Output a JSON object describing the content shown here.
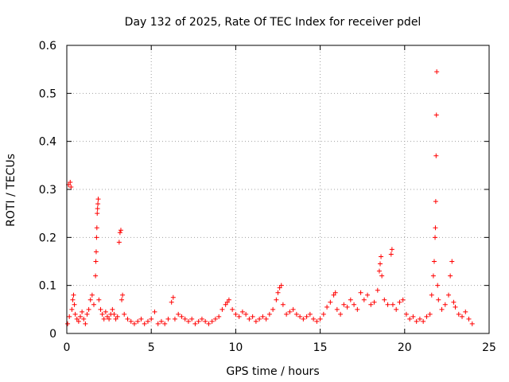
{
  "chart_data": {
    "type": "scatter",
    "title": "Day 132 of 2025, Rate Of TEC Index for receiver pdel",
    "xlabel": "GPS time / hours",
    "ylabel": "ROTI / TECUs",
    "xlim": [
      0,
      25
    ],
    "ylim": [
      0,
      0.6
    ],
    "x_ticks": [
      0,
      5,
      10,
      15,
      20,
      25
    ],
    "y_ticks": [
      0,
      0.1,
      0.2,
      0.3,
      0.4,
      0.5,
      0.6
    ],
    "x_tick_labels": [
      "0",
      "5",
      "10",
      "15",
      "20",
      "25"
    ],
    "y_tick_labels": [
      "0",
      "0.1",
      "0.2",
      "0.3",
      "0.4",
      "0.5",
      "0.6"
    ],
    "grid": true,
    "marker": "plus",
    "color": "#ff0000",
    "series": [
      {
        "points": [
          [
            0.1,
            0.31
          ],
          [
            0.2,
            0.315
          ],
          [
            0.25,
            0.305
          ],
          [
            0.05,
            0.02
          ],
          [
            0.15,
            0.035
          ],
          [
            0.3,
            0.05
          ],
          [
            0.35,
            0.07
          ],
          [
            0.4,
            0.08
          ],
          [
            0.45,
            0.06
          ],
          [
            0.5,
            0.04
          ],
          [
            0.6,
            0.03
          ],
          [
            0.7,
            0.025
          ],
          [
            0.8,
            0.035
          ],
          [
            0.9,
            0.045
          ],
          [
            1.0,
            0.03
          ],
          [
            1.1,
            0.02
          ],
          [
            1.2,
            0.04
          ],
          [
            1.3,
            0.05
          ],
          [
            1.4,
            0.07
          ],
          [
            1.5,
            0.08
          ],
          [
            1.6,
            0.06
          ],
          [
            1.7,
            0.12
          ],
          [
            1.72,
            0.15
          ],
          [
            1.74,
            0.17
          ],
          [
            1.76,
            0.2
          ],
          [
            1.78,
            0.22
          ],
          [
            1.8,
            0.25
          ],
          [
            1.82,
            0.26
          ],
          [
            1.84,
            0.27
          ],
          [
            1.86,
            0.28
          ],
          [
            1.9,
            0.07
          ],
          [
            2.0,
            0.05
          ],
          [
            2.1,
            0.04
          ],
          [
            2.2,
            0.03
          ],
          [
            2.3,
            0.045
          ],
          [
            2.4,
            0.035
          ],
          [
            2.5,
            0.03
          ],
          [
            2.6,
            0.04
          ],
          [
            2.7,
            0.05
          ],
          [
            2.8,
            0.04
          ],
          [
            2.9,
            0.03
          ],
          [
            3.0,
            0.035
          ],
          [
            3.1,
            0.19
          ],
          [
            3.15,
            0.21
          ],
          [
            3.2,
            0.215
          ],
          [
            3.25,
            0.07
          ],
          [
            3.3,
            0.08
          ],
          [
            3.4,
            0.04
          ],
          [
            3.6,
            0.03
          ],
          [
            3.8,
            0.025
          ],
          [
            4.0,
            0.02
          ],
          [
            4.2,
            0.025
          ],
          [
            4.4,
            0.03
          ],
          [
            4.6,
            0.02
          ],
          [
            4.8,
            0.025
          ],
          [
            5.0,
            0.03
          ],
          [
            5.2,
            0.045
          ],
          [
            5.4,
            0.02
          ],
          [
            5.6,
            0.025
          ],
          [
            5.8,
            0.02
          ],
          [
            6.0,
            0.03
          ],
          [
            6.2,
            0.065
          ],
          [
            6.3,
            0.075
          ],
          [
            6.4,
            0.03
          ],
          [
            6.6,
            0.04
          ],
          [
            6.8,
            0.035
          ],
          [
            7.0,
            0.03
          ],
          [
            7.2,
            0.025
          ],
          [
            7.4,
            0.03
          ],
          [
            7.6,
            0.02
          ],
          [
            7.8,
            0.025
          ],
          [
            8.0,
            0.03
          ],
          [
            8.2,
            0.025
          ],
          [
            8.4,
            0.02
          ],
          [
            8.6,
            0.025
          ],
          [
            8.8,
            0.03
          ],
          [
            9.0,
            0.035
          ],
          [
            9.2,
            0.05
          ],
          [
            9.4,
            0.06
          ],
          [
            9.5,
            0.065
          ],
          [
            9.6,
            0.07
          ],
          [
            9.8,
            0.05
          ],
          [
            10.0,
            0.04
          ],
          [
            10.2,
            0.035
          ],
          [
            10.4,
            0.045
          ],
          [
            10.6,
            0.04
          ],
          [
            10.8,
            0.03
          ],
          [
            11.0,
            0.035
          ],
          [
            11.2,
            0.025
          ],
          [
            11.4,
            0.03
          ],
          [
            11.6,
            0.035
          ],
          [
            11.8,
            0.03
          ],
          [
            12.0,
            0.04
          ],
          [
            12.2,
            0.05
          ],
          [
            12.4,
            0.07
          ],
          [
            12.5,
            0.085
          ],
          [
            12.6,
            0.095
          ],
          [
            12.7,
            0.1
          ],
          [
            12.8,
            0.06
          ],
          [
            13.0,
            0.04
          ],
          [
            13.2,
            0.045
          ],
          [
            13.4,
            0.05
          ],
          [
            13.6,
            0.04
          ],
          [
            13.8,
            0.035
          ],
          [
            14.0,
            0.03
          ],
          [
            14.2,
            0.035
          ],
          [
            14.4,
            0.04
          ],
          [
            14.6,
            0.03
          ],
          [
            14.8,
            0.025
          ],
          [
            15.0,
            0.03
          ],
          [
            15.2,
            0.04
          ],
          [
            15.4,
            0.055
          ],
          [
            15.6,
            0.065
          ],
          [
            15.8,
            0.08
          ],
          [
            15.9,
            0.085
          ],
          [
            16.0,
            0.05
          ],
          [
            16.2,
            0.04
          ],
          [
            16.4,
            0.06
          ],
          [
            16.6,
            0.055
          ],
          [
            16.8,
            0.07
          ],
          [
            17.0,
            0.06
          ],
          [
            17.2,
            0.05
          ],
          [
            17.4,
            0.085
          ],
          [
            17.6,
            0.07
          ],
          [
            17.8,
            0.08
          ],
          [
            18.0,
            0.06
          ],
          [
            18.2,
            0.065
          ],
          [
            18.4,
            0.09
          ],
          [
            18.5,
            0.13
          ],
          [
            18.55,
            0.145
          ],
          [
            18.6,
            0.16
          ],
          [
            18.65,
            0.12
          ],
          [
            18.8,
            0.07
          ],
          [
            19.0,
            0.06
          ],
          [
            19.2,
            0.165
          ],
          [
            19.25,
            0.175
          ],
          [
            19.3,
            0.06
          ],
          [
            19.5,
            0.05
          ],
          [
            19.7,
            0.065
          ],
          [
            19.9,
            0.07
          ],
          [
            20.1,
            0.04
          ],
          [
            20.3,
            0.03
          ],
          [
            20.5,
            0.035
          ],
          [
            20.7,
            0.025
          ],
          [
            20.9,
            0.03
          ],
          [
            21.1,
            0.025
          ],
          [
            21.3,
            0.035
          ],
          [
            21.5,
            0.04
          ],
          [
            21.6,
            0.08
          ],
          [
            21.7,
            0.12
          ],
          [
            21.75,
            0.15
          ],
          [
            21.8,
            0.2
          ],
          [
            21.82,
            0.22
          ],
          [
            21.84,
            0.275
          ],
          [
            21.86,
            0.37
          ],
          [
            21.88,
            0.455
          ],
          [
            21.9,
            0.545
          ],
          [
            21.95,
            0.1
          ],
          [
            22.0,
            0.07
          ],
          [
            22.2,
            0.05
          ],
          [
            22.4,
            0.06
          ],
          [
            22.6,
            0.08
          ],
          [
            22.7,
            0.12
          ],
          [
            22.8,
            0.15
          ],
          [
            22.9,
            0.065
          ],
          [
            23.0,
            0.055
          ],
          [
            23.2,
            0.04
          ],
          [
            23.4,
            0.035
          ],
          [
            23.6,
            0.045
          ],
          [
            23.8,
            0.03
          ],
          [
            24.0,
            0.02
          ]
        ]
      }
    ]
  }
}
